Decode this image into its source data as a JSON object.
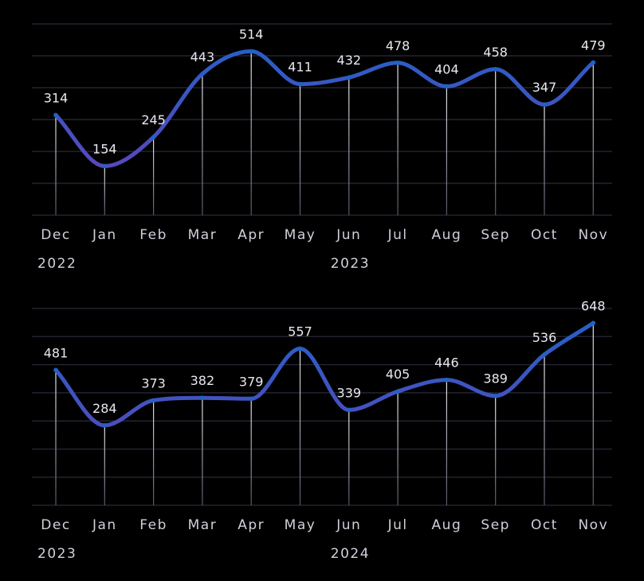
{
  "colors": {
    "background": "#000000",
    "grid": "#2a2a3a",
    "line_blue": "#1f63c8",
    "line_purple": "#6a3fb8",
    "label": "#e8e8f0"
  },
  "chart_data": [
    {
      "type": "line",
      "categories": [
        "Dec",
        "Jan",
        "Feb",
        "Mar",
        "Apr",
        "May",
        "Jun",
        "Jul",
        "Aug",
        "Sep",
        "Oct",
        "Nov"
      ],
      "year_labels": [
        {
          "index": 0,
          "text": "2022"
        },
        {
          "index": 6,
          "text": "2023"
        }
      ],
      "values": [
        314,
        154,
        245,
        443,
        514,
        411,
        432,
        478,
        404,
        458,
        347,
        479
      ],
      "ylim": [
        0,
        600
      ],
      "grid": true,
      "smooth": true
    },
    {
      "type": "line",
      "categories": [
        "Dec",
        "Jan",
        "Feb",
        "Mar",
        "Apr",
        "May",
        "Jun",
        "Jul",
        "Aug",
        "Sep",
        "Oct",
        "Nov"
      ],
      "year_labels": [
        {
          "index": 0,
          "text": "2023"
        },
        {
          "index": 6,
          "text": "2024"
        }
      ],
      "values": [
        481,
        284,
        373,
        382,
        379,
        557,
        339,
        405,
        446,
        389,
        536,
        648
      ],
      "ylim": [
        0,
        700
      ],
      "grid": true,
      "smooth": true
    }
  ]
}
